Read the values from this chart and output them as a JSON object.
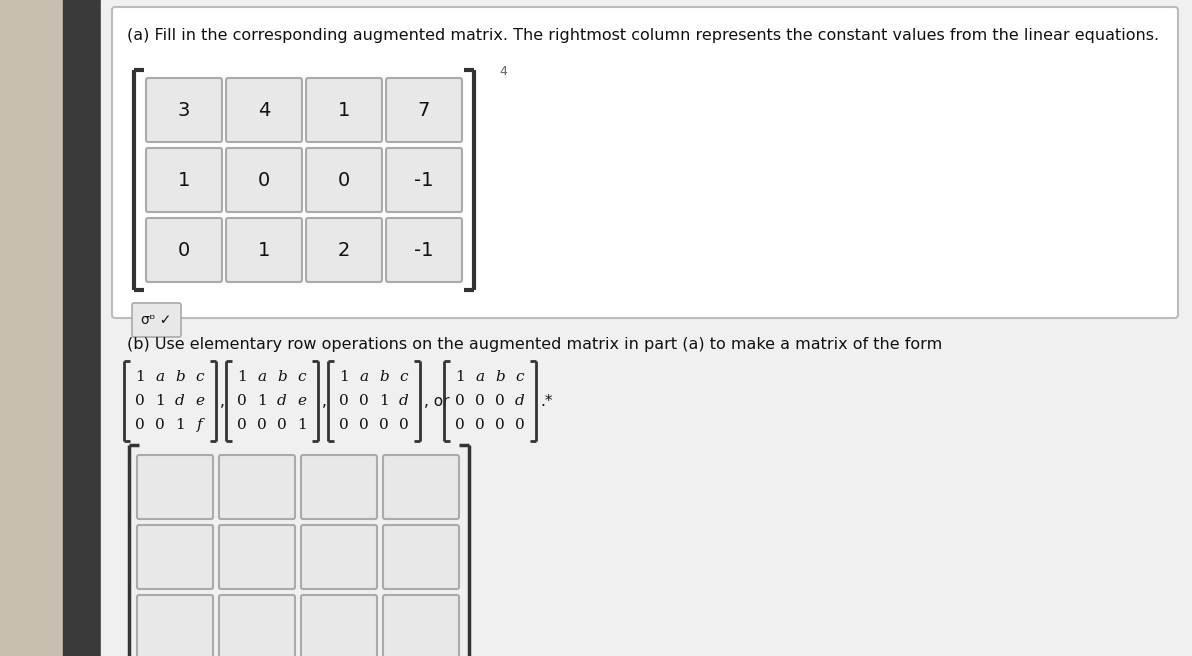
{
  "outer_bg": "#c8bfb0",
  "sidebar_color": "#3a3a3a",
  "content_bg": "#f0f0f0",
  "panel_color": "#ffffff",
  "cell_fill": "#e8e8e8",
  "cell_edge": "#999999",
  "text_color": "#111111",
  "bracket_color": "#333333",
  "title_a": "(a) Fill in the corresponding augmented matrix. The rightmost column represents the constant values from the linear equations.",
  "title_b": "(b) Use elementary row operations on the augmented matrix in part (a) to make a matrix of the form",
  "matrix_a": [
    [
      "3",
      "4",
      "1",
      "7"
    ],
    [
      "1",
      "0",
      "0",
      "-1"
    ],
    [
      "0",
      "1",
      "2",
      "-1"
    ]
  ],
  "form_matrices": [
    {
      "rows": [
        [
          "1",
          "a",
          "b",
          "c"
        ],
        [
          "0",
          "1",
          "d",
          "e"
        ],
        [
          "0",
          "0",
          "1",
          "f"
        ]
      ],
      "sep": ","
    },
    {
      "rows": [
        [
          "1",
          "a",
          "b",
          "c"
        ],
        [
          "0",
          "1",
          "d",
          "e"
        ],
        [
          "0",
          "0",
          "0",
          "1"
        ]
      ],
      "sep": ","
    },
    {
      "rows": [
        [
          "1",
          "a",
          "b",
          "c"
        ],
        [
          "0",
          "0",
          "1",
          "d"
        ],
        [
          "0",
          "0",
          "0",
          "0"
        ]
      ],
      "sep": ", or"
    },
    {
      "rows": [
        [
          "1",
          "a",
          "b",
          "c"
        ],
        [
          "0",
          "0",
          "0",
          "d"
        ],
        [
          "0",
          "0",
          "0",
          "0"
        ]
      ],
      "sep": ".*"
    }
  ],
  "sigma_text": "σᶛ✓",
  "small4_text": "4"
}
